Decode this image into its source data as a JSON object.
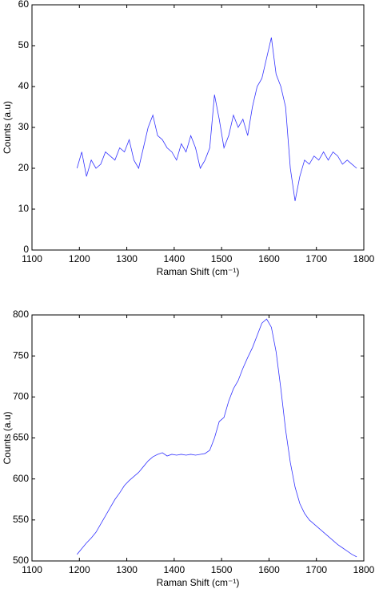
{
  "chart_data": [
    {
      "type": "line",
      "xlabel": "Raman Shift (cm⁻¹)",
      "ylabel": "Counts (a.u)",
      "x": [
        1195,
        1205,
        1215,
        1225,
        1235,
        1245,
        1255,
        1265,
        1275,
        1285,
        1295,
        1305,
        1315,
        1325,
        1335,
        1345,
        1355,
        1365,
        1375,
        1385,
        1395,
        1405,
        1415,
        1425,
        1435,
        1445,
        1455,
        1465,
        1475,
        1485,
        1495,
        1505,
        1515,
        1525,
        1535,
        1545,
        1555,
        1565,
        1575,
        1585,
        1595,
        1605,
        1615,
        1625,
        1635,
        1645,
        1655,
        1665,
        1675,
        1685,
        1695,
        1705,
        1715,
        1725,
        1735,
        1745,
        1755,
        1765,
        1775,
        1785
      ],
      "series": [
        {
          "color": "#3333ff",
          "values": [
            20,
            24,
            18,
            22,
            20,
            21,
            24,
            23,
            22,
            25,
            24,
            27,
            22,
            20,
            25,
            30,
            33,
            28,
            27,
            25,
            24,
            22,
            26,
            24,
            28,
            25,
            20,
            22,
            25,
            38,
            32,
            25,
            28,
            33,
            30,
            32,
            28,
            35,
            40,
            42,
            47,
            52,
            43,
            40,
            35,
            20,
            12,
            18,
            22,
            21,
            23,
            22,
            24,
            22,
            24,
            23,
            21,
            22,
            21,
            20
          ]
        }
      ],
      "xlim": [
        1100,
        1800
      ],
      "xticks": [
        1100,
        1200,
        1300,
        1400,
        1500,
        1600,
        1700,
        1800
      ],
      "ylim": [
        0,
        60
      ],
      "yticks": [
        0,
        10,
        20,
        30,
        40,
        50,
        60
      ],
      "grid": false
    },
    {
      "type": "line",
      "xlabel": "Raman Shift (cm⁻¹)",
      "ylabel": "Counts (a.u)",
      "x": [
        1195,
        1205,
        1215,
        1225,
        1235,
        1245,
        1255,
        1265,
        1275,
        1285,
        1295,
        1305,
        1315,
        1325,
        1335,
        1345,
        1355,
        1365,
        1375,
        1385,
        1395,
        1405,
        1415,
        1425,
        1435,
        1445,
        1455,
        1465,
        1475,
        1485,
        1495,
        1505,
        1515,
        1525,
        1535,
        1545,
        1555,
        1565,
        1575,
        1585,
        1595,
        1605,
        1615,
        1625,
        1635,
        1645,
        1655,
        1665,
        1675,
        1685,
        1695,
        1705,
        1715,
        1725,
        1735,
        1745,
        1755,
        1765,
        1775,
        1785
      ],
      "series": [
        {
          "color": "#3333ff",
          "values": [
            508,
            515,
            522,
            528,
            535,
            545,
            555,
            565,
            575,
            583,
            592,
            598,
            603,
            608,
            615,
            622,
            627,
            630,
            632,
            628,
            630,
            629,
            630,
            629,
            630,
            629,
            630,
            631,
            635,
            650,
            670,
            675,
            695,
            710,
            720,
            735,
            748,
            760,
            775,
            790,
            795,
            785,
            755,
            710,
            660,
            620,
            590,
            570,
            558,
            550,
            545,
            540,
            535,
            530,
            525,
            520,
            516,
            512,
            508,
            505
          ]
        }
      ],
      "xlim": [
        1100,
        1800
      ],
      "xticks": [
        1100,
        1200,
        1300,
        1400,
        1500,
        1600,
        1700,
        1800
      ],
      "ylim": [
        500,
        800
      ],
      "yticks": [
        500,
        550,
        600,
        650,
        700,
        750,
        800
      ],
      "grid": false
    }
  ]
}
